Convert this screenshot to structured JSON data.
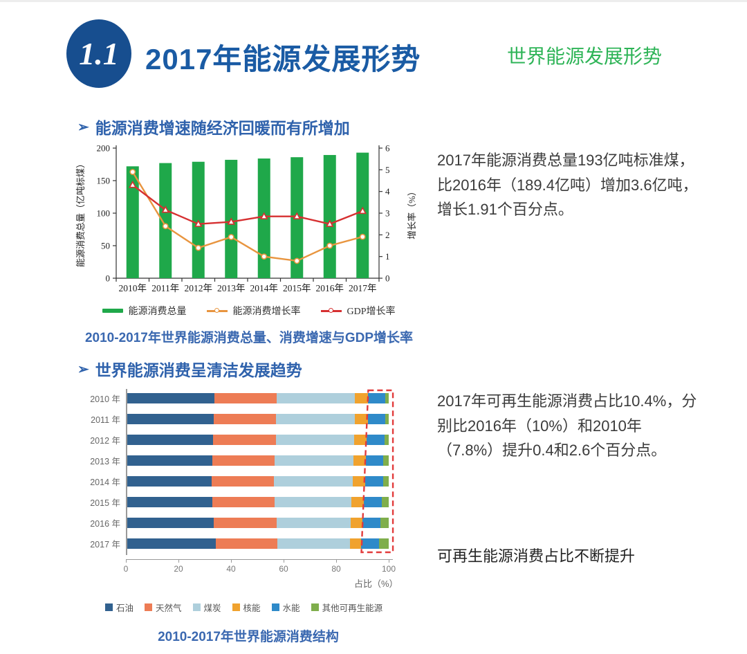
{
  "header": {
    "badge": "1.1",
    "title": "2017年能源发展形势",
    "subtitle": "世界能源发展形势"
  },
  "section1": {
    "bullet": "➢",
    "heading": "能源消费增速随经济回暖而有所增加",
    "paragraph": "2017年能源消费总量193亿吨标准煤，\n比2016年（189.4亿吨）增加3.6亿吨，\n增长1.91个百分点。"
  },
  "section2": {
    "bullet": "➢",
    "heading": "世界能源消费呈清洁发展趋势",
    "paragraph": "2017年可再生能源消费占比10.4%，分\n别比2016年（10%）和2010年\n（7.8%）提升0.4和2.6个百分点。",
    "note": "可再生能源消费占比不断提升"
  },
  "chart_data": [
    {
      "id": "world-energy-consumption-and-growth",
      "type": "bar",
      "subtype": "bar-line-combo",
      "categories": [
        "2010年",
        "2011年",
        "2012年",
        "2013年",
        "2014年",
        "2015年",
        "2016年",
        "2017年"
      ],
      "series": [
        {
          "name": "能源消费总量",
          "type": "bar",
          "axis": "left",
          "color": "#1FA84A",
          "values": [
            172,
            177,
            179,
            182,
            184,
            186,
            189.4,
            193
          ]
        },
        {
          "name": "能源消费增长率",
          "type": "line",
          "axis": "right",
          "color": "#E8953F",
          "marker": "circle",
          "values": [
            4.9,
            2.4,
            1.4,
            1.9,
            1.0,
            0.8,
            1.5,
            1.91
          ]
        },
        {
          "name": "GDP增长率",
          "type": "line",
          "axis": "right",
          "color": "#D63031",
          "marker": "triangle",
          "values": [
            4.3,
            3.15,
            2.5,
            2.6,
            2.85,
            2.85,
            2.5,
            3.1
          ]
        }
      ],
      "left_axis": {
        "label": "能源消费总量（亿吨标煤）",
        "min": 0,
        "max": 200,
        "ticks": [
          0,
          50,
          100,
          150,
          200
        ]
      },
      "right_axis": {
        "label": "增长率（%）",
        "min": 0,
        "max": 6,
        "ticks": [
          0,
          1,
          2,
          3,
          4,
          5,
          6
        ]
      },
      "grid": false,
      "legend_position": "bottom",
      "caption": "2010-2017年世界能源消费总量、消费增速与GDP增长率"
    },
    {
      "id": "world-energy-mix",
      "type": "bar",
      "subtype": "horizontal-stacked",
      "categories": [
        "2010 年",
        "2011 年",
        "2012 年",
        "2013 年",
        "2014 年",
        "2015 年",
        "2016 年",
        "2017 年"
      ],
      "series": [
        {
          "name": "石油",
          "color": "#31618F",
          "values": [
            33.6,
            33.4,
            33.1,
            32.9,
            32.6,
            32.9,
            33.3,
            34.2
          ]
        },
        {
          "name": "天然气",
          "color": "#ED7C55",
          "values": [
            23.8,
            23.7,
            23.9,
            23.7,
            23.7,
            23.8,
            24.1,
            23.4
          ]
        },
        {
          "name": "煤炭",
          "color": "#AECFDC",
          "values": [
            29.8,
            30.0,
            29.9,
            30.1,
            30.0,
            29.2,
            28.1,
            27.6
          ]
        },
        {
          "name": "核能",
          "color": "#F0A22E",
          "values": [
            5.0,
            4.9,
            4.7,
            4.6,
            4.7,
            4.7,
            4.5,
            4.4
          ]
        },
        {
          "name": "水能",
          "color": "#2F8AC9",
          "values": [
            6.6,
            6.6,
            6.7,
            6.7,
            6.8,
            6.8,
            6.9,
            6.8
          ]
        },
        {
          "name": "其他可再生能源",
          "color": "#7FAE4C",
          "values": [
            1.2,
            1.4,
            1.7,
            2.0,
            2.2,
            2.6,
            3.1,
            3.6
          ]
        }
      ],
      "xlabel": "占比（%）",
      "x_ticks": [
        0,
        20,
        40,
        60,
        80,
        100
      ],
      "xlim": [
        0,
        100
      ],
      "highlight_box": {
        "style": "dashed",
        "color": "#E23B3B",
        "meaning": "renewables-share-growing",
        "renewable_share_pct": [
          7.8,
          8.0,
          8.4,
          8.7,
          9.0,
          9.4,
          10.0,
          10.4
        ]
      },
      "legend_position": "bottom",
      "caption": "2010-2017年世界能源消费结构"
    }
  ]
}
